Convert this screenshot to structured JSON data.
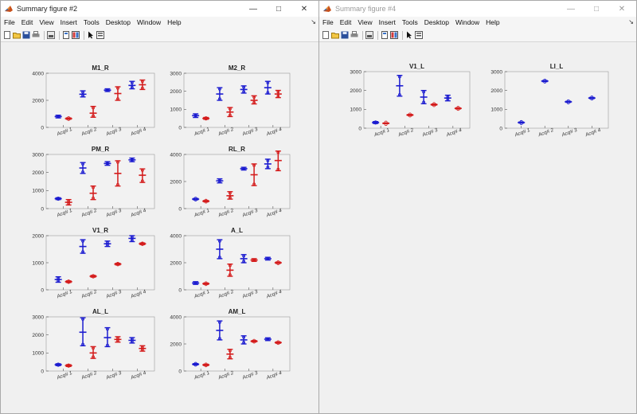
{
  "windows": [
    {
      "title": "Summary figure #2",
      "active": true,
      "menu": [
        "File",
        "Edit",
        "View",
        "Insert",
        "Tools",
        "Desktop",
        "Window",
        "Help"
      ]
    },
    {
      "title": "Summary figure #4",
      "active": false,
      "menu": [
        "File",
        "Edit",
        "View",
        "Insert",
        "Tools",
        "Desktop",
        "Window",
        "Help"
      ]
    }
  ],
  "colors": {
    "blue": "#1c1cd0",
    "red": "#d41c1c",
    "axes_bg": "#f2f2f2",
    "figure_bg": "#f0f0f0"
  },
  "toolbar_icons": [
    "new-file-icon",
    "open-folder-icon",
    "save-icon",
    "print-icon",
    "print-preview-icon",
    "link-plot-icon",
    "insert-colorbar-icon",
    "cursor-icon",
    "property-editor-icon"
  ],
  "chart_data": [
    {
      "figure": 0,
      "title": "M1_R",
      "type": "errorbar",
      "ylim": [
        0,
        4000
      ],
      "yticks": [
        0,
        2000,
        4000
      ],
      "categories": [
        "Acq# 1",
        "Acq# 2",
        "Acq# 3",
        "Acq# 4"
      ],
      "series": [
        {
          "color": "blue",
          "mean": [
            800,
            2450,
            2750,
            3100
          ],
          "low": [
            700,
            2250,
            2650,
            2850
          ],
          "high": [
            900,
            2700,
            2850,
            3400
          ]
        },
        {
          "color": "red",
          "mean": [
            650,
            1050,
            2500,
            3150
          ],
          "low": [
            600,
            750,
            2000,
            2800
          ],
          "high": [
            700,
            1550,
            3000,
            3500
          ]
        }
      ]
    },
    {
      "figure": 0,
      "title": "M2_R",
      "type": "errorbar",
      "ylim": [
        0,
        3000
      ],
      "yticks": [
        0,
        1000,
        2000,
        3000
      ],
      "categories": [
        "Acq# 1",
        "Acq# 2",
        "Acq# 3",
        "Acq# 4"
      ],
      "series": [
        {
          "color": "blue",
          "mean": [
            650,
            1850,
            2100,
            2200
          ],
          "low": [
            550,
            1500,
            1900,
            1850
          ],
          "high": [
            750,
            2200,
            2300,
            2550
          ]
        },
        {
          "color": "red",
          "mean": [
            500,
            850,
            1500,
            1850
          ],
          "low": [
            450,
            600,
            1300,
            1650
          ],
          "high": [
            550,
            1100,
            1750,
            2050
          ]
        }
      ]
    },
    {
      "figure": 0,
      "title": "PM_R",
      "type": "errorbar",
      "ylim": [
        0,
        3000
      ],
      "yticks": [
        0,
        1000,
        2000,
        3000
      ],
      "categories": [
        "Acq# 1",
        "Acq# 2",
        "Acq# 3",
        "Acq# 4"
      ],
      "series": [
        {
          "color": "blue",
          "mean": [
            550,
            2250,
            2500,
            2700
          ],
          "low": [
            500,
            1950,
            2400,
            2600
          ],
          "high": [
            600,
            2550,
            2600,
            2800
          ]
        },
        {
          "color": "red",
          "mean": [
            350,
            850,
            1950,
            1850
          ],
          "low": [
            200,
            500,
            1250,
            1450
          ],
          "high": [
            500,
            1250,
            2650,
            2200
          ]
        }
      ]
    },
    {
      "figure": 0,
      "title": "RL_R",
      "type": "errorbar",
      "ylim": [
        0,
        4000
      ],
      "yticks": [
        0,
        2000,
        4000
      ],
      "categories": [
        "Acq# 1",
        "Acq# 2",
        "Acq# 3",
        "Acq# 4"
      ],
      "series": [
        {
          "color": "blue",
          "mean": [
            700,
            2050,
            2950,
            3300
          ],
          "low": [
            650,
            1900,
            2850,
            2950
          ],
          "high": [
            750,
            2200,
            3050,
            3650
          ]
        },
        {
          "color": "red",
          "mean": [
            550,
            950,
            2500,
            3550
          ],
          "low": [
            500,
            700,
            1700,
            2800
          ],
          "high": [
            600,
            1250,
            3300,
            4250
          ]
        }
      ]
    },
    {
      "figure": 0,
      "title": "V1_R",
      "type": "errorbar",
      "ylim": [
        0,
        2000
      ],
      "yticks": [
        0,
        1000,
        2000
      ],
      "categories": [
        "Acq# 1",
        "Acq# 2",
        "Acq# 3",
        "Acq# 4"
      ],
      "series": [
        {
          "color": "blue",
          "mean": [
            380,
            1600,
            1700,
            1900
          ],
          "low": [
            280,
            1350,
            1600,
            1780
          ],
          "high": [
            480,
            1850,
            1800,
            2000
          ]
        },
        {
          "color": "red",
          "mean": [
            300,
            500,
            950,
            1700
          ],
          "low": [
            270,
            470,
            920,
            1670
          ],
          "high": [
            330,
            530,
            980,
            1730
          ]
        }
      ]
    },
    {
      "figure": 0,
      "title": "A_L",
      "type": "errorbar",
      "ylim": [
        0,
        4000
      ],
      "yticks": [
        0,
        2000,
        4000
      ],
      "categories": [
        "Acq# 1",
        "Acq# 2",
        "Acq# 3",
        "Acq# 4"
      ],
      "series": [
        {
          "color": "blue",
          "mean": [
            500,
            3000,
            2300,
            2300
          ],
          "low": [
            400,
            2300,
            2000,
            2200
          ],
          "high": [
            600,
            3700,
            2600,
            2400
          ]
        },
        {
          "color": "red",
          "mean": [
            450,
            1450,
            2200,
            2000
          ],
          "low": [
            400,
            1000,
            2100,
            1950
          ],
          "high": [
            500,
            1900,
            2300,
            2050
          ]
        }
      ]
    },
    {
      "figure": 0,
      "title": "AL_L",
      "type": "errorbar",
      "ylim": [
        0,
        3000
      ],
      "yticks": [
        0,
        1000,
        2000,
        3000
      ],
      "categories": [
        "Acq# 1",
        "Acq# 2",
        "Acq# 3",
        "Acq# 4"
      ],
      "series": [
        {
          "color": "blue",
          "mean": [
            350,
            2150,
            1850,
            1700
          ],
          "low": [
            300,
            1400,
            1350,
            1550
          ],
          "high": [
            400,
            2950,
            2400,
            1850
          ]
        },
        {
          "color": "red",
          "mean": [
            300,
            1000,
            1750,
            1250
          ],
          "low": [
            250,
            700,
            1600,
            1100
          ],
          "high": [
            350,
            1350,
            1900,
            1400
          ]
        }
      ]
    },
    {
      "figure": 0,
      "title": "AM_L",
      "type": "errorbar",
      "ylim": [
        0,
        4000
      ],
      "yticks": [
        0,
        2000,
        4000
      ],
      "categories": [
        "Acq# 1",
        "Acq# 2",
        "Acq# 3",
        "Acq# 4"
      ],
      "series": [
        {
          "color": "blue",
          "mean": [
            500,
            3000,
            2300,
            2350
          ],
          "low": [
            450,
            2300,
            2000,
            2250
          ],
          "high": [
            550,
            3700,
            2600,
            2450
          ]
        },
        {
          "color": "red",
          "mean": [
            450,
            1250,
            2200,
            2100
          ],
          "low": [
            400,
            900,
            2150,
            2050
          ],
          "high": [
            500,
            1600,
            2250,
            2150
          ]
        }
      ]
    },
    {
      "figure": 1,
      "title": "V1_L",
      "type": "errorbar",
      "ylim": [
        0,
        3000
      ],
      "yticks": [
        0,
        1000,
        2000,
        3000
      ],
      "categories": [
        "Acq# 1",
        "Acq# 2",
        "Acq# 3",
        "Acq# 4"
      ],
      "series": [
        {
          "color": "blue",
          "mean": [
            300,
            2250,
            1650,
            1600
          ],
          "low": [
            250,
            1700,
            1300,
            1450
          ],
          "high": [
            350,
            2800,
            2000,
            1750
          ]
        },
        {
          "color": "red",
          "mean": [
            260,
            700,
            1250,
            1050
          ],
          "low": [
            240,
            670,
            1220,
            1020
          ],
          "high": [
            280,
            730,
            1280,
            1080
          ]
        }
      ]
    },
    {
      "figure": 1,
      "title": "LI_L",
      "type": "errorbar",
      "ylim": [
        0,
        3000
      ],
      "yticks": [
        0,
        1000,
        2000,
        3000
      ],
      "categories": [
        "Acq# 1",
        "Acq# 2",
        "Acq# 3",
        "Acq# 4"
      ],
      "series": [
        {
          "color": "blue",
          "mean": [
            300,
            2500,
            1400,
            1600
          ],
          "low": [
            270,
            2470,
            1370,
            1570
          ],
          "high": [
            330,
            2530,
            1430,
            1630
          ]
        }
      ]
    }
  ]
}
